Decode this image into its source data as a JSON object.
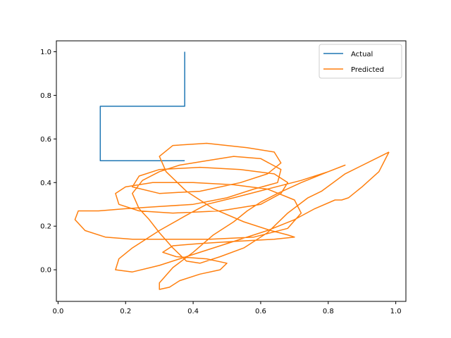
{
  "chart_data": {
    "type": "line",
    "title": "",
    "xlabel": "",
    "ylabel": "",
    "xlim": [
      -0.005,
      1.03
    ],
    "ylim": [
      -0.145,
      1.05
    ],
    "grid": false,
    "legend_position": "top-right",
    "xticks": [
      0.0,
      0.2,
      0.4,
      0.6,
      0.8,
      1.0
    ],
    "xtick_labels": [
      "0.0",
      "0.2",
      "0.4",
      "0.6",
      "0.8",
      "1.0"
    ],
    "yticks": [
      0.0,
      0.2,
      0.4,
      0.6,
      0.8,
      1.0
    ],
    "ytick_labels": [
      "0.0",
      "0.2",
      "0.4",
      "0.6",
      "0.8",
      "1.0"
    ],
    "series": [
      {
        "name": "Actual",
        "color": "#1f77b4",
        "x": [
          0.375,
          0.375,
          0.125,
          0.125,
          0.375
        ],
        "y": [
          1.0,
          0.75,
          0.75,
          0.5,
          0.5
        ]
      },
      {
        "name": "Predicted",
        "color": "#ff7f0e",
        "x": [
          0.98,
          0.85,
          0.78,
          0.74,
          0.68,
          0.62,
          0.55,
          0.48,
          0.42,
          0.38,
          0.34,
          0.3,
          0.27,
          0.24,
          0.22,
          0.25,
          0.3,
          0.36,
          0.44,
          0.52,
          0.6,
          0.66,
          0.65,
          0.58,
          0.5,
          0.4,
          0.3,
          0.2,
          0.12,
          0.06,
          0.05,
          0.08,
          0.14,
          0.22,
          0.32,
          0.45,
          0.58,
          0.68,
          0.72,
          0.7,
          0.62,
          0.52,
          0.4,
          0.28,
          0.2,
          0.17,
          0.18,
          0.24,
          0.34,
          0.48,
          0.6,
          0.66,
          0.68,
          0.64,
          0.54,
          0.42,
          0.3,
          0.24,
          0.22,
          0.3,
          0.42,
          0.54,
          0.62,
          0.66,
          0.64,
          0.56,
          0.44,
          0.34,
          0.3,
          0.32,
          0.38,
          0.46,
          0.55,
          0.63,
          0.68,
          0.7,
          0.64,
          0.52,
          0.42,
          0.34,
          0.31,
          0.35,
          0.44,
          0.5,
          0.48,
          0.42,
          0.36,
          0.33,
          0.3,
          0.3,
          0.34,
          0.4,
          0.46,
          0.52,
          0.56,
          0.6,
          0.65,
          0.72,
          0.8,
          0.85,
          0.8,
          0.72,
          0.62,
          0.52,
          0.44,
          0.38,
          0.3,
          0.22,
          0.18,
          0.17,
          0.22,
          0.3,
          0.4,
          0.52,
          0.62,
          0.7,
          0.76,
          0.82,
          0.84,
          0.86,
          0.9,
          0.95,
          0.98
        ],
        "y": [
          0.54,
          0.44,
          0.36,
          0.33,
          0.26,
          0.17,
          0.1,
          0.06,
          0.03,
          0.04,
          0.1,
          0.17,
          0.23,
          0.28,
          0.35,
          0.41,
          0.45,
          0.48,
          0.5,
          0.52,
          0.51,
          0.46,
          0.4,
          0.37,
          0.33,
          0.3,
          0.29,
          0.28,
          0.27,
          0.27,
          0.23,
          0.18,
          0.15,
          0.14,
          0.14,
          0.14,
          0.15,
          0.19,
          0.26,
          0.32,
          0.37,
          0.39,
          0.4,
          0.4,
          0.38,
          0.35,
          0.3,
          0.27,
          0.26,
          0.27,
          0.3,
          0.35,
          0.4,
          0.44,
          0.46,
          0.47,
          0.46,
          0.43,
          0.38,
          0.35,
          0.36,
          0.4,
          0.44,
          0.49,
          0.54,
          0.56,
          0.58,
          0.57,
          0.52,
          0.45,
          0.36,
          0.28,
          0.22,
          0.18,
          0.16,
          0.15,
          0.14,
          0.13,
          0.12,
          0.11,
          0.08,
          0.06,
          0.05,
          0.03,
          0.0,
          -0.02,
          -0.05,
          -0.08,
          -0.09,
          -0.06,
          0.01,
          0.08,
          0.16,
          0.22,
          0.27,
          0.31,
          0.35,
          0.4,
          0.45,
          0.48,
          0.45,
          0.41,
          0.37,
          0.33,
          0.3,
          0.25,
          0.18,
          0.1,
          0.05,
          0.0,
          -0.01,
          0.02,
          0.07,
          0.13,
          0.18,
          0.23,
          0.28,
          0.32,
          0.32,
          0.33,
          0.38,
          0.45,
          0.54
        ]
      }
    ]
  }
}
